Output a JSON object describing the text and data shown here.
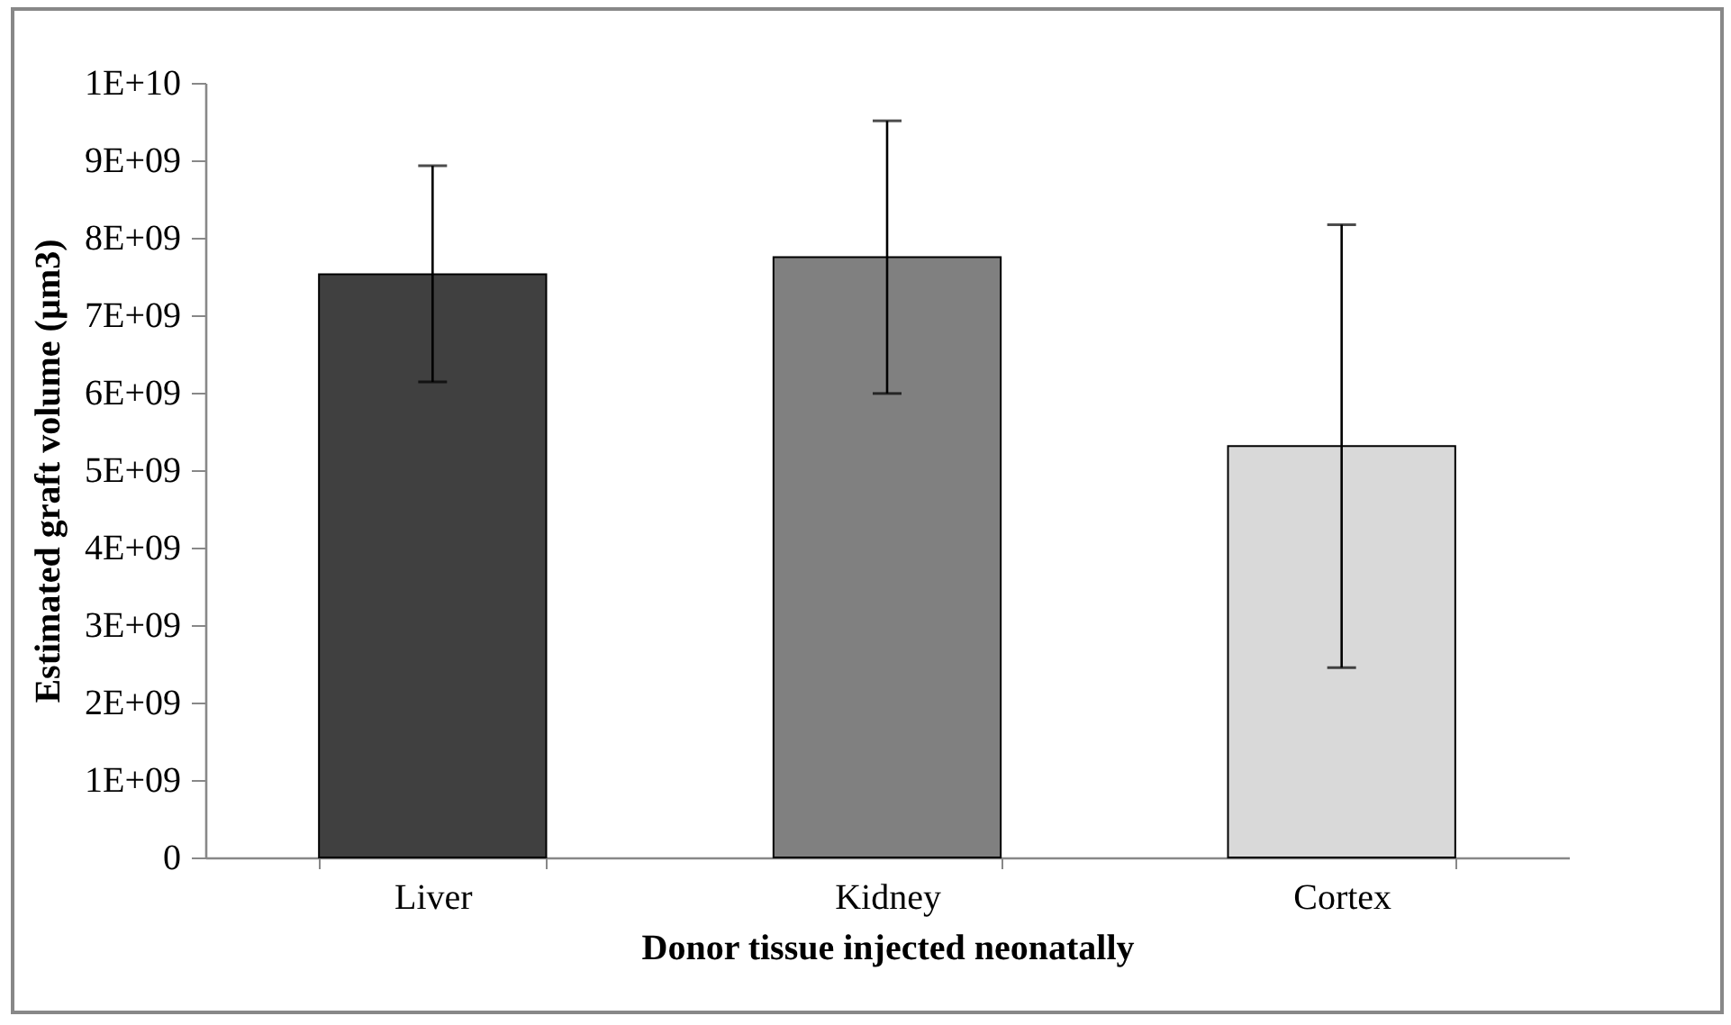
{
  "chart_data": {
    "type": "bar",
    "xlabel": "Donor tissue injected neonatally",
    "ylabel": "Estimated graft volume (µm3)",
    "categories": [
      "Liver",
      "Kidney",
      "Cortex"
    ],
    "values": [
      7530000000,
      7750000000,
      5310000000
    ],
    "colors": [
      "#404040",
      "#808080",
      "#d9d9d9"
    ],
    "errors": [
      [
        6140000000,
        8930000000
      ],
      [
        5990000000,
        9510000000
      ],
      [
        2450000000,
        8170000000
      ]
    ],
    "ylim": [
      0,
      10000000000
    ],
    "yticks": [
      {
        "value": 0,
        "label": "0"
      },
      {
        "value": 1000000000,
        "label": "1E+09"
      },
      {
        "value": 2000000000,
        "label": "2E+09"
      },
      {
        "value": 3000000000,
        "label": "3E+09"
      },
      {
        "value": 4000000000,
        "label": "4E+09"
      },
      {
        "value": 5000000000,
        "label": "5E+09"
      },
      {
        "value": 6000000000,
        "label": "6E+09"
      },
      {
        "value": 7000000000,
        "label": "7E+09"
      },
      {
        "value": 8000000000,
        "label": "8E+09"
      },
      {
        "value": 9000000000,
        "label": "9E+09"
      },
      {
        "value": 10000000000,
        "label": "1E+10"
      }
    ],
    "grid": false
  }
}
